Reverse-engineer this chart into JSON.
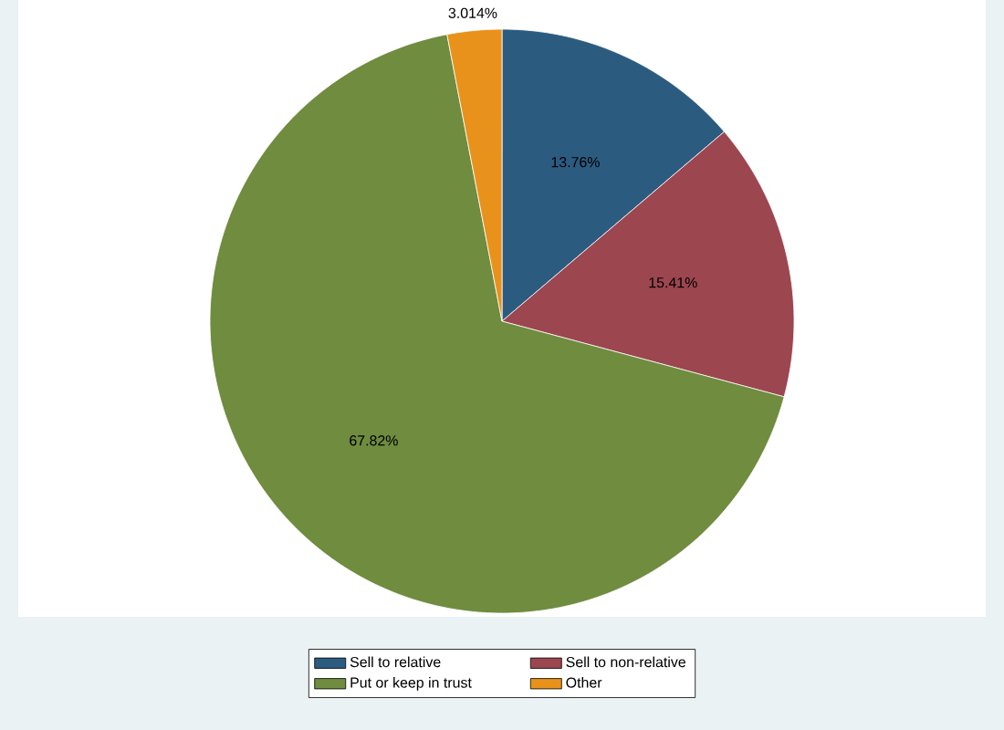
{
  "chart_data": {
    "type": "pie",
    "categories": [
      "Sell to relative",
      "Sell to non-relative",
      "Put or keep in trust",
      "Other"
    ],
    "values": [
      13.76,
      15.41,
      67.82,
      3.014
    ],
    "value_labels": [
      "13.76%",
      "15.41%",
      "67.82%",
      "3.014%"
    ],
    "colors": [
      "#2c5b80",
      "#9c4650",
      "#6f8c3f",
      "#e8921c"
    ],
    "legend": "bottom"
  }
}
